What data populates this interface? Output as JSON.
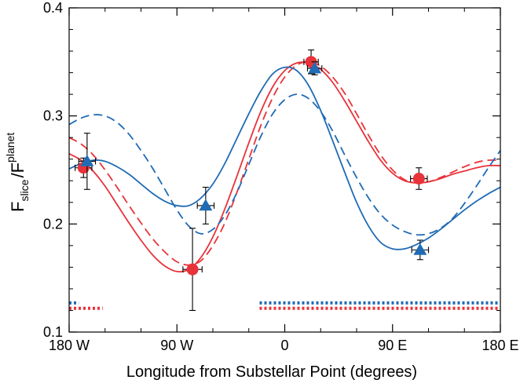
{
  "chart_data": {
    "type": "line",
    "xlabel": "Longitude from Substellar Point (degrees)",
    "ylabel": {
      "f1": "F",
      "sub1": "slice",
      "slash": "/",
      "f2": "F",
      "sub2": "planet"
    },
    "xlim": [
      -180,
      180
    ],
    "ylim": [
      0.1,
      0.4
    ],
    "x_ticks": [
      {
        "value": -180,
        "label": "180 W"
      },
      {
        "value": -90,
        "label": "90 W"
      },
      {
        "value": 0,
        "label": "0"
      },
      {
        "value": 90,
        "label": "90 E"
      },
      {
        "value": 180,
        "label": "180 E"
      }
    ],
    "y_ticks": [
      {
        "value": 0.1,
        "label": "0.1"
      },
      {
        "value": 0.2,
        "label": "0.2"
      },
      {
        "value": 0.3,
        "label": "0.3"
      },
      {
        "value": 0.4,
        "label": "0.4"
      }
    ],
    "colors": {
      "red": "#e8333a",
      "blue": "#1f6bb5"
    },
    "series": [
      {
        "color": "red",
        "style": "solid",
        "x": [
          -180,
          -170,
          -160,
          -150,
          -140,
          -130,
          -120,
          -110,
          -100,
          -90,
          -80,
          -70,
          -60,
          -50,
          -40,
          -30,
          -20,
          -10,
          0,
          10,
          20,
          30,
          40,
          50,
          60,
          70,
          80,
          90,
          100,
          110,
          120,
          130,
          140,
          150,
          160,
          170,
          180
        ],
        "y": [
          0.265,
          0.259,
          0.249,
          0.235,
          0.218,
          0.201,
          0.185,
          0.171,
          0.161,
          0.156,
          0.158,
          0.169,
          0.188,
          0.214,
          0.244,
          0.275,
          0.304,
          0.327,
          0.342,
          0.349,
          0.349,
          0.343,
          0.331,
          0.314,
          0.295,
          0.276,
          0.259,
          0.247,
          0.24,
          0.238,
          0.239,
          0.242,
          0.246,
          0.249,
          0.252,
          0.254,
          0.254
        ]
      },
      {
        "color": "red",
        "style": "dashed",
        "x": [
          -180,
          -170,
          -160,
          -150,
          -140,
          -130,
          -120,
          -110,
          -100,
          -90,
          -80,
          -70,
          -60,
          -50,
          -40,
          -30,
          -20,
          -10,
          0,
          10,
          20,
          30,
          40,
          50,
          60,
          70,
          80,
          90,
          100,
          110,
          120,
          130,
          140,
          150,
          160,
          170,
          180
        ],
        "y": [
          0.28,
          0.274,
          0.264,
          0.25,
          0.234,
          0.217,
          0.201,
          0.186,
          0.174,
          0.165,
          0.162,
          0.166,
          0.18,
          0.201,
          0.229,
          0.26,
          0.291,
          0.317,
          0.336,
          0.347,
          0.35,
          0.346,
          0.336,
          0.321,
          0.302,
          0.282,
          0.264,
          0.25,
          0.241,
          0.238,
          0.239,
          0.243,
          0.248,
          0.253,
          0.257,
          0.259,
          0.259
        ]
      },
      {
        "color": "blue",
        "style": "solid",
        "x": [
          -180,
          -170,
          -160,
          -150,
          -140,
          -130,
          -120,
          -110,
          -100,
          -90,
          -80,
          -70,
          -60,
          -50,
          -40,
          -30,
          -20,
          -10,
          0,
          10,
          20,
          30,
          40,
          50,
          60,
          70,
          80,
          90,
          100,
          110,
          120,
          130,
          140,
          150,
          160,
          170,
          180
        ],
        "y": [
          0.251,
          0.256,
          0.259,
          0.258,
          0.253,
          0.246,
          0.237,
          0.228,
          0.221,
          0.217,
          0.217,
          0.224,
          0.237,
          0.256,
          0.279,
          0.302,
          0.323,
          0.339,
          0.345,
          0.342,
          0.328,
          0.305,
          0.277,
          0.248,
          0.22,
          0.198,
          0.183,
          0.177,
          0.177,
          0.181,
          0.187,
          0.195,
          0.204,
          0.213,
          0.221,
          0.228,
          0.234
        ]
      },
      {
        "color": "blue",
        "style": "dashed",
        "x": [
          -180,
          -170,
          -160,
          -150,
          -140,
          -130,
          -120,
          -110,
          -100,
          -90,
          -80,
          -70,
          -60,
          -50,
          -40,
          -30,
          -20,
          -10,
          0,
          10,
          20,
          30,
          40,
          50,
          60,
          70,
          80,
          90,
          100,
          110,
          120,
          130,
          140,
          150,
          160,
          170,
          180
        ],
        "y": [
          0.292,
          0.298,
          0.301,
          0.3,
          0.294,
          0.283,
          0.268,
          0.251,
          0.232,
          0.213,
          0.198,
          0.191,
          0.195,
          0.208,
          0.229,
          0.255,
          0.281,
          0.302,
          0.315,
          0.32,
          0.316,
          0.304,
          0.286,
          0.264,
          0.243,
          0.224,
          0.209,
          0.199,
          0.193,
          0.19,
          0.191,
          0.196,
          0.205,
          0.219,
          0.235,
          0.252,
          0.268
        ]
      }
    ],
    "points": [
      {
        "color": "red",
        "marker": "circle",
        "x": -168,
        "y": 0.252,
        "xerr": 7,
        "yerr": 0.009
      },
      {
        "color": "red",
        "marker": "circle",
        "x": -77,
        "y": 0.158,
        "xerr": 8,
        "yerr": 0.038
      },
      {
        "color": "red",
        "marker": "circle",
        "x": 22,
        "y": 0.35,
        "xerr": 6,
        "yerr": 0.011
      },
      {
        "color": "red",
        "marker": "circle",
        "x": 112,
        "y": 0.242,
        "xerr": 7,
        "yerr": 0.01
      },
      {
        "color": "blue",
        "marker": "triangle",
        "x": -165,
        "y": 0.258,
        "xerr": 7,
        "yerr": 0.026
      },
      {
        "color": "blue",
        "marker": "triangle",
        "x": -66,
        "y": 0.217,
        "xerr": 7,
        "yerr": 0.017
      },
      {
        "color": "blue",
        "marker": "triangle",
        "x": 25,
        "y": 0.344,
        "xerr": 6,
        "yerr": 0.006
      },
      {
        "color": "blue",
        "marker": "triangle",
        "x": 113,
        "y": 0.176,
        "xerr": 7,
        "yerr": 0.009
      }
    ],
    "coverage_bars": [
      {
        "color": "blue",
        "y": 0.127,
        "segments": [
          [
            -180,
            -172
          ],
          [
            -21,
            180
          ]
        ]
      },
      {
        "color": "red",
        "y": 0.122,
        "segments": [
          [
            -180,
            -152
          ],
          [
            -21,
            180
          ]
        ]
      }
    ]
  }
}
